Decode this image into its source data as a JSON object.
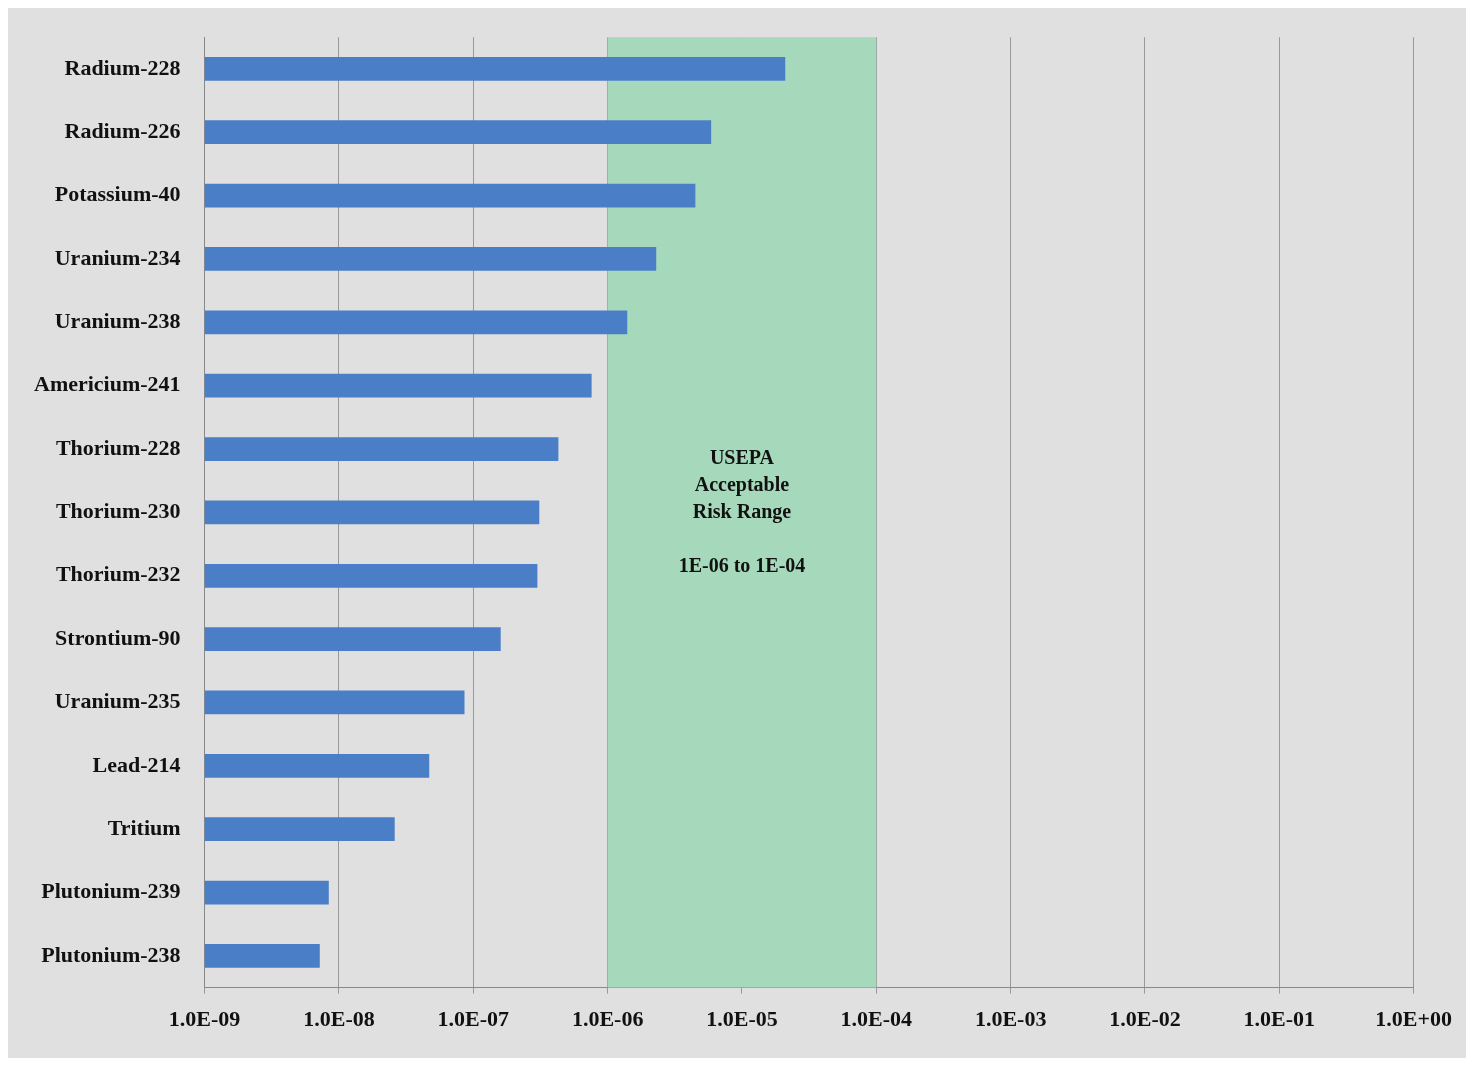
{
  "chart_data": {
    "type": "bar",
    "orientation": "horizontal",
    "log": "x",
    "categories": [
      "Radium-228",
      "Radium-226",
      "Potassium-40",
      "Uranium-234",
      "Uranium-238",
      "Americium-241",
      "Thorium-228",
      "Thorium-230",
      "Thorium-232",
      "Strontium-90",
      "Uranium-235",
      "Lead-214",
      "Tritium",
      "Plutonium-239",
      "Plutonium-238"
    ],
    "values": [
      2.1e-05,
      5.9e-06,
      4.5e-06,
      2.3e-06,
      1.4e-06,
      7.6e-07,
      4.3e-07,
      3.1e-07,
      3e-07,
      1.6e-07,
      8.6e-08,
      4.7e-08,
      2.6e-08,
      8.4e-09,
      7.2e-09
    ],
    "color": "#4a7fc8",
    "xlim": [
      1e-09,
      1
    ],
    "xticks": [
      {
        "value": 1e-09,
        "label": "1.0E-09"
      },
      {
        "value": 1e-08,
        "label": "1.0E-08"
      },
      {
        "value": 1e-07,
        "label": "1.0E-07"
      },
      {
        "value": 1e-06,
        "label": "1.0E-06"
      },
      {
        "value": 1e-05,
        "label": "1.0E-05"
      },
      {
        "value": 0.0001,
        "label": "1.0E-04"
      },
      {
        "value": 0.001,
        "label": "1.0E-03"
      },
      {
        "value": 0.01,
        "label": "1.0E-02"
      },
      {
        "value": 0.1,
        "label": "1.0E-01"
      },
      {
        "value": 1,
        "label": "1.0E+00"
      }
    ],
    "grid": "x",
    "legend": false,
    "bands": [
      {
        "axis": "x",
        "from": 1e-06,
        "to": 0.0001,
        "label": "USEPA\nAcceptable\nRisk Range\n\n1E-06 to 1E-04",
        "color": "#a6d9bb"
      }
    ]
  }
}
